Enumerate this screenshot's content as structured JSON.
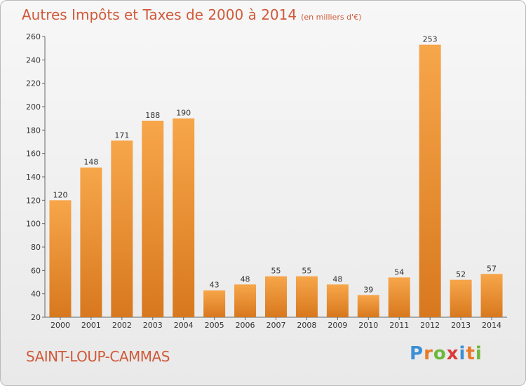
{
  "header": {
    "title": "Autres Impôts et Taxes de 2000 à 2014",
    "subtitle": "(en milliers d'€)"
  },
  "footer": {
    "commune": "SAINT-LOUP-CAMMAS",
    "logo_letters": [
      "P",
      "r",
      "o",
      "x",
      "i",
      "t",
      "i"
    ],
    "logo_colors": [
      "#3b8fd6",
      "#e8792a",
      "#6bb83b",
      "#d93a3a",
      "#3b8fd6",
      "#e8792a",
      "#6bb83b"
    ]
  },
  "colors": {
    "bar_top": "#f7a64a",
    "bar_bottom": "#d8781e",
    "title": "#d05a3a"
  },
  "chart_data": {
    "type": "bar",
    "title": "Autres Impôts et Taxes de 2000 à 2014",
    "subtitle": "(en milliers d'€)",
    "categories": [
      "2000",
      "2001",
      "2002",
      "2003",
      "2004",
      "2005",
      "2006",
      "2007",
      "2008",
      "2009",
      "2010",
      "2011",
      "2012",
      "2013",
      "2014"
    ],
    "values": [
      120,
      148,
      171,
      188,
      190,
      43,
      48,
      55,
      55,
      48,
      39,
      54,
      253,
      52,
      57
    ],
    "ylim": [
      20,
      260
    ],
    "yticks": [
      20,
      40,
      60,
      80,
      100,
      120,
      140,
      160,
      180,
      200,
      220,
      240,
      260
    ],
    "grid": false,
    "data_labels": true
  }
}
